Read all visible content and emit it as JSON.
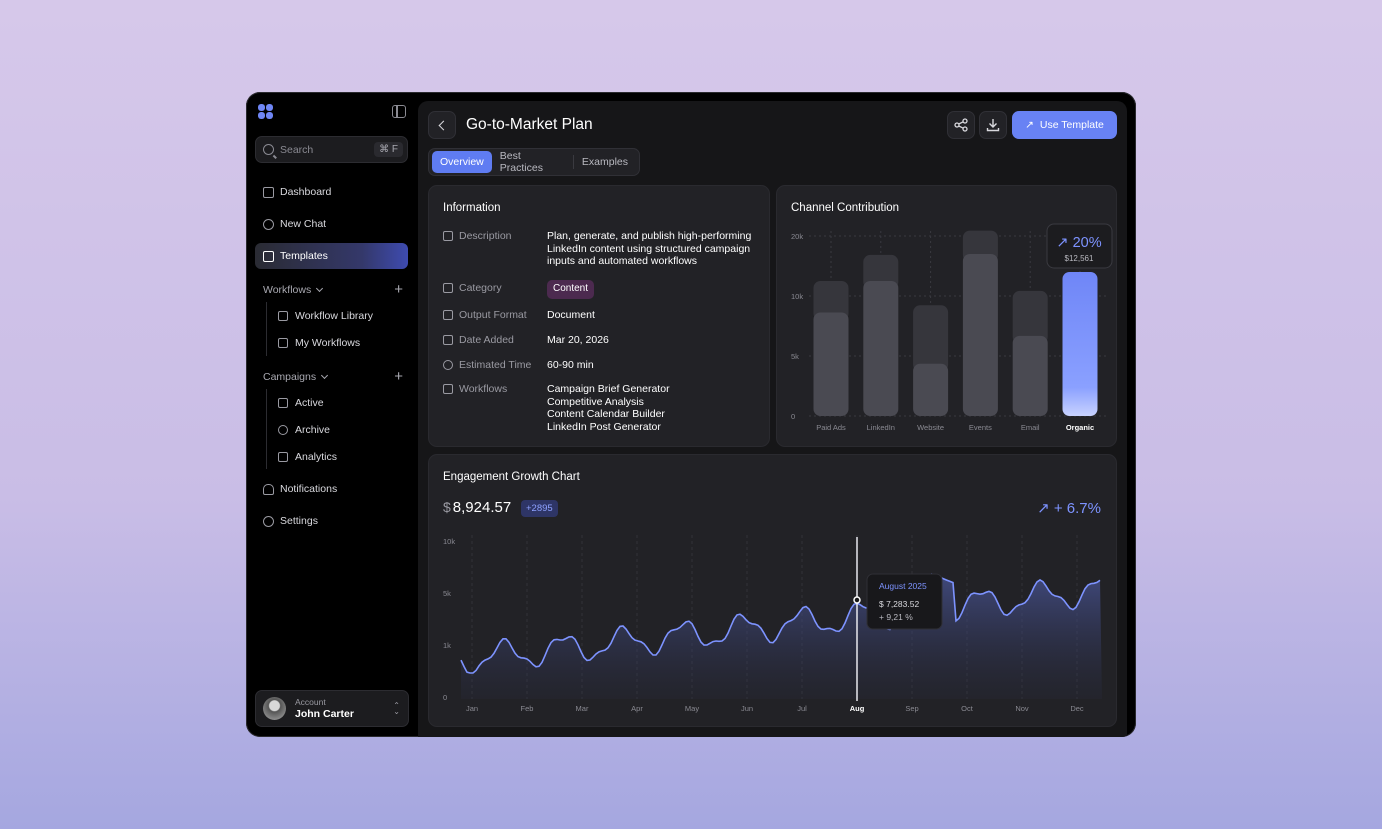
{
  "sidebar": {
    "search_placeholder": "Search",
    "search_shortcut": "⌘ F",
    "nav": {
      "dashboard": "Dashboard",
      "new_chat": "New Chat",
      "templates": "Templates",
      "notifications": "Notifications",
      "settings": "Settings"
    },
    "workflows": {
      "label": "Workflows",
      "items": [
        "Workflow Library",
        "My Workflows"
      ]
    },
    "campaigns": {
      "label": "Campaigns",
      "items": [
        "Active",
        "Archive",
        "Analytics"
      ]
    },
    "account": {
      "label": "Account",
      "name": "John Carter"
    }
  },
  "header": {
    "title": "Go-to-Market Plan",
    "use_template_label": "Use Template",
    "tabs": [
      "Overview",
      "Best Practices",
      "Examples"
    ],
    "active_tab": "Overview"
  },
  "information": {
    "title": "Information",
    "description_label": "Description",
    "description": "Plan, generate, and publish high-performing LinkedIn content using structured campaign inputs and automated workflows",
    "category_label": "Category",
    "category": "Content",
    "output_format_label": "Output Format",
    "output_format": "Document",
    "date_added_label": "Date Added",
    "date_added": "Mar 20, 2026",
    "estimated_time_label": "Estimated Time",
    "estimated_time": "60-90 min",
    "workflows_label": "Workflows",
    "workflows": [
      "Campaign Brief Generator",
      "Competitive Analysis",
      "Content Calendar Builder",
      "LinkedIn Post Generator"
    ]
  },
  "channel": {
    "title": "Channel Contribution",
    "highlight_pct": "20%",
    "highlight_value": "$12,561"
  },
  "engagement": {
    "title": "Engagement Growth Chart",
    "currency": "$",
    "value": "8,924.57",
    "delta": "+2895",
    "growth": "+ 6.7%",
    "tooltip": {
      "title": "August 2025",
      "value": "$ 7,283.52",
      "change": "+ 9,21 %"
    }
  },
  "colors": {
    "accent": "#6882f4",
    "bar": "#4a4a52",
    "bar_top": "#36363c",
    "line": "#7d93ff"
  },
  "chart_data": [
    {
      "type": "bar",
      "title": "Channel Contribution",
      "categories": [
        "Paid Ads",
        "LinkedIn",
        "Website",
        "Events",
        "Email",
        "Organic"
      ],
      "series": [
        {
          "values": [
            11500,
            15000,
            5800,
            18000,
            8900,
            16000
          ]
        },
        {
          "values": [
            3500,
            2900,
            6500,
            2600,
            5000,
            0
          ]
        }
      ],
      "y_ticks": [
        "0",
        "5k",
        "10k",
        "20k"
      ],
      "highlight": "Organic",
      "grid": true
    },
    {
      "type": "area",
      "title": "Engagement Growth Chart",
      "x": [
        "Jan",
        "Feb",
        "Mar",
        "Apr",
        "May",
        "Jun",
        "Jul",
        "Aug",
        "Sep",
        "Oct",
        "Nov",
        "Dec"
      ],
      "y_ticks": [
        "0",
        "1k",
        "5k",
        "10k"
      ],
      "highlight": "Aug",
      "grid": true
    }
  ]
}
